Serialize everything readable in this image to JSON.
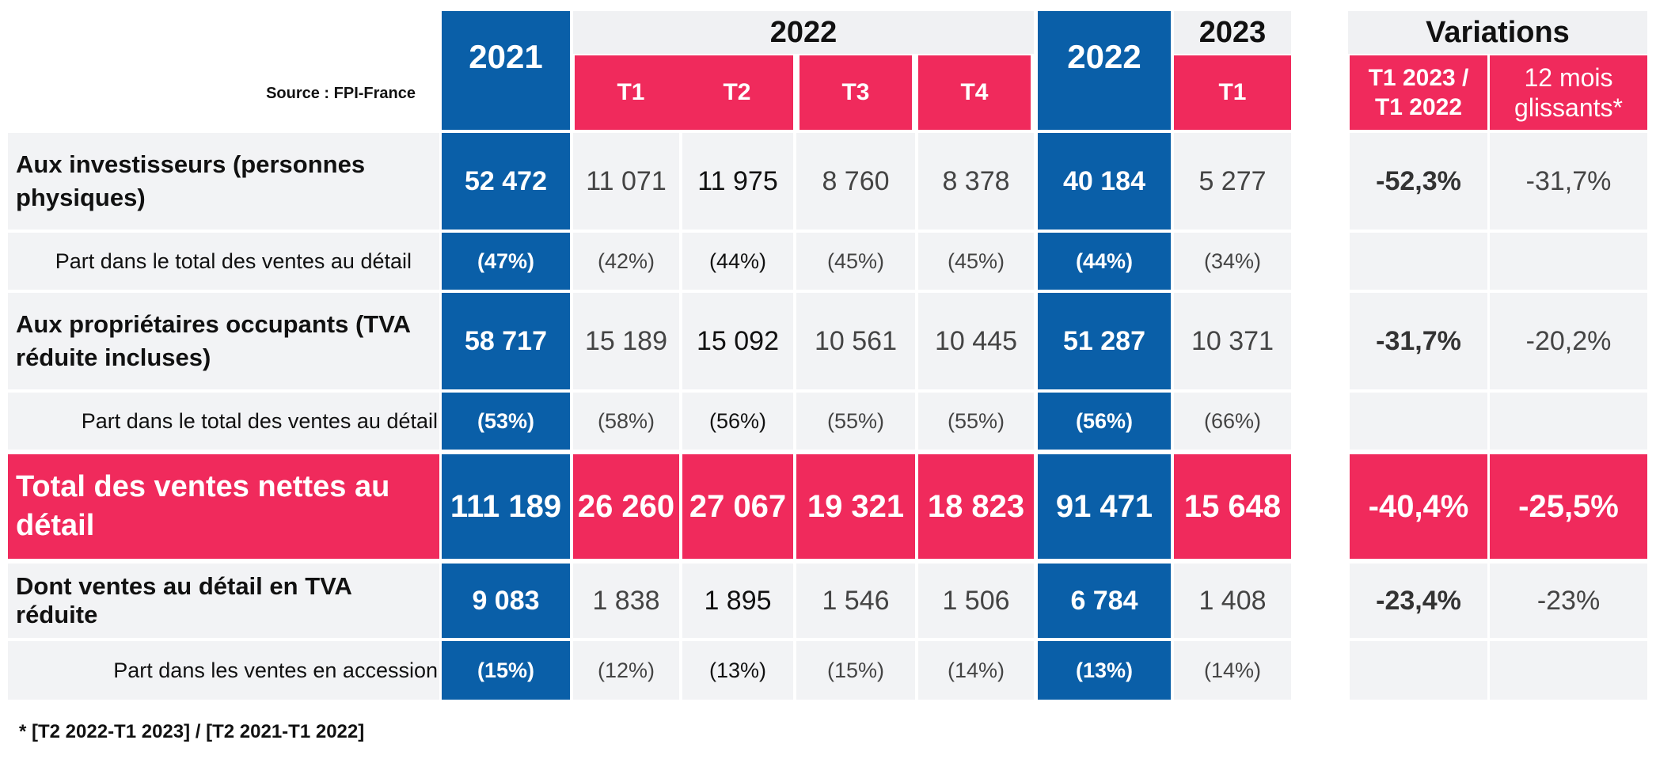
{
  "source": "Source : FPI-France",
  "colors": {
    "blue": "#0a5fa8",
    "pink": "#f02a5c",
    "grey": "#f2f3f5"
  },
  "headers": {
    "year_2021": "2021",
    "year_2022_group": "2022",
    "year_2022_total": "2022",
    "year_2023_group": "2023",
    "variations": "Variations",
    "quarters_2022": [
      "T1",
      "T2",
      "T3",
      "T4"
    ],
    "quarter_2023": "T1",
    "var_col1": "T1 2023 / T1 2022",
    "var_col2": "12 mois glissants*"
  },
  "rows": [
    {
      "label": "Aux investisseurs (personnes physiques)",
      "y2021": "52 472",
      "q": [
        "11 071",
        "11 975",
        "8 760",
        "8 378"
      ],
      "y2022": "40 184",
      "q2023": "5 277",
      "var1": "-52,3%",
      "var2": "-31,7%"
    },
    {
      "label": "Part dans le total des ventes au détail",
      "y2021": "(47%)",
      "q": [
        "(42%)",
        "(44%)",
        "(45%)",
        "(45%)"
      ],
      "y2022": "(44%)",
      "q2023": "(34%)",
      "var1": "",
      "var2": ""
    },
    {
      "label": "Aux propriétaires occupants (TVA réduite incluses)",
      "y2021": "58 717",
      "q": [
        "15 189",
        "15 092",
        "10 561",
        "10 445"
      ],
      "y2022": "51 287",
      "q2023": "10 371",
      "var1": "-31,7%",
      "var2": "-20,2%"
    },
    {
      "label": "Part dans le total des ventes au détail",
      "y2021": "(53%)",
      "q": [
        "(58%)",
        "(56%)",
        "(55%)",
        "(55%)"
      ],
      "y2022": "(56%)",
      "q2023": "(66%)",
      "var1": "",
      "var2": ""
    },
    {
      "label": "Total des ventes nettes au détail",
      "y2021": "111 189",
      "q": [
        "26 260",
        "27 067",
        "19 321",
        "18 823"
      ],
      "y2022": "91 471",
      "q2023": "15 648",
      "var1": "-40,4%",
      "var2": "-25,5%"
    },
    {
      "label": "Dont ventes au détail en TVA réduite",
      "y2021": "9 083",
      "q": [
        "1 838",
        "1 895",
        "1 546",
        "1 506"
      ],
      "y2022": "6 784",
      "q2023": "1 408",
      "var1": "-23,4%",
      "var2": "-23%"
    },
    {
      "label": "Part dans les ventes en accession",
      "y2021": "(15%)",
      "q": [
        "(12%)",
        "(13%)",
        "(15%)",
        "(14%)"
      ],
      "y2022": "(13%)",
      "q2023": "(14%)",
      "var1": "",
      "var2": ""
    }
  ],
  "footnote": "* [T2 2022-T1 2023] / [T2 2021-T1 2022]"
}
